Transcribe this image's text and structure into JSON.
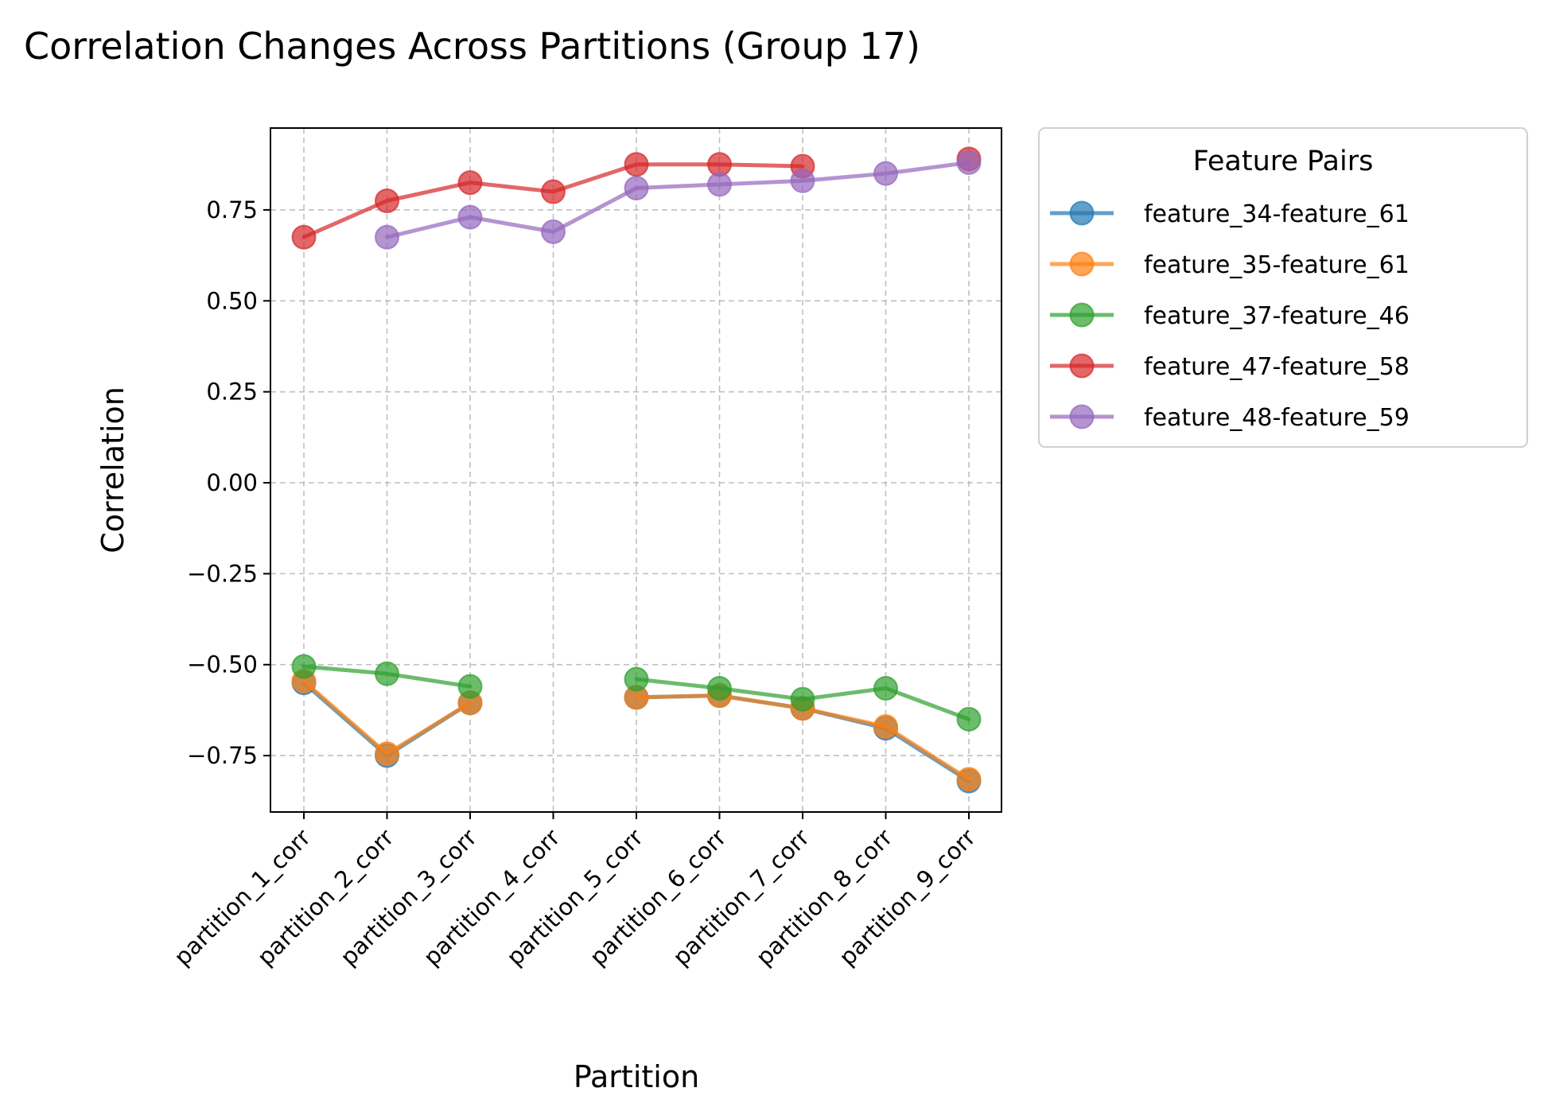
{
  "chart_data": {
    "type": "line",
    "title": "Correlation Changes Across Partitions (Group 17)",
    "xlabel": "Partition",
    "ylabel": "Correlation",
    "categories": [
      "partition_1_corr",
      "partition_2_corr",
      "partition_3_corr",
      "partition_4_corr",
      "partition_5_corr",
      "partition_6_corr",
      "partition_7_corr",
      "partition_8_corr",
      "partition_9_corr"
    ],
    "yticks": [
      -0.75,
      -0.5,
      -0.25,
      0.0,
      0.25,
      0.5,
      0.75
    ],
    "ytick_labels": [
      "−0.75",
      "−0.50",
      "−0.25",
      "0.00",
      "0.25",
      "0.50",
      "0.75"
    ],
    "ylim": [
      -0.905,
      0.975
    ],
    "grid": true,
    "legend": {
      "title": "Feature Pairs",
      "placement": "outside right, top"
    },
    "series": [
      {
        "name": "feature_34-feature_61",
        "color": "#1f77b4",
        "values": [
          -0.55,
          -0.75,
          -0.605,
          null,
          -0.59,
          -0.585,
          -0.62,
          -0.675,
          -0.82
        ]
      },
      {
        "name": "feature_35-feature_61",
        "color": "#ff7f0e",
        "values": [
          -0.545,
          -0.745,
          -0.605,
          null,
          -0.59,
          -0.585,
          -0.62,
          -0.67,
          -0.815
        ]
      },
      {
        "name": "feature_37-feature_46",
        "color": "#2ca02c",
        "values": [
          -0.505,
          -0.525,
          -0.56,
          null,
          -0.54,
          -0.565,
          -0.595,
          -0.565,
          -0.65
        ]
      },
      {
        "name": "feature_47-feature_58",
        "color": "#d62728",
        "values": [
          0.675,
          0.775,
          0.825,
          0.8,
          0.875,
          0.875,
          0.87,
          null,
          0.89
        ]
      },
      {
        "name": "feature_48-feature_59",
        "color": "#9467bd",
        "values": [
          null,
          0.675,
          0.73,
          0.69,
          0.81,
          0.82,
          0.83,
          0.85,
          0.88
        ]
      }
    ]
  }
}
